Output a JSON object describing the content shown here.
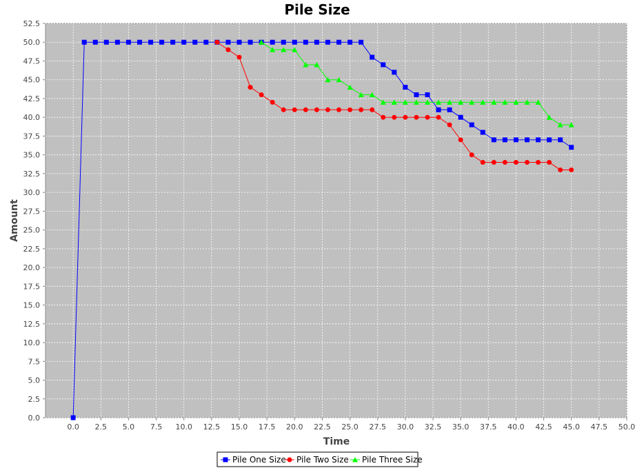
{
  "chart_data": {
    "type": "line",
    "title": "Pile Size",
    "xlabel": "Time",
    "ylabel": "Amount",
    "xlim": [
      -2.5,
      50
    ],
    "ylim": [
      0,
      52.5
    ],
    "x_ticks": [
      0,
      2.5,
      5,
      7.5,
      10,
      12.5,
      15,
      17.5,
      20,
      22.5,
      25,
      27.5,
      30,
      32.5,
      35,
      37.5,
      40,
      42.5,
      45,
      47.5,
      50
    ],
    "x_tick_labels": [
      "0.0",
      "2.5",
      "5.0",
      "7.5",
      "10.0",
      "12.5",
      "15.0",
      "17.5",
      "20.0",
      "22.5",
      "25.0",
      "27.5",
      "30.0",
      "32.5",
      "35.0",
      "37.5",
      "40.0",
      "42.5",
      "45.0",
      "47.5",
      "50.0"
    ],
    "y_ticks": [
      0,
      2.5,
      5,
      7.5,
      10,
      12.5,
      15,
      17.5,
      20,
      22.5,
      25,
      27.5,
      30,
      32.5,
      35,
      37.5,
      40,
      42.5,
      45,
      47.5,
      50,
      52.5
    ],
    "y_tick_labels": [
      "0.0",
      "2.5",
      "5.0",
      "7.5",
      "10.0",
      "12.5",
      "15.0",
      "17.5",
      "20.0",
      "22.5",
      "25.0",
      "27.5",
      "30.0",
      "32.5",
      "35.0",
      "37.5",
      "40.0",
      "42.5",
      "45.0",
      "47.5",
      "50.0",
      "52.5"
    ],
    "grid": true,
    "plot_background": "#c0c0c0",
    "legend_position": "bottom",
    "series": [
      {
        "name": "Pile One Size",
        "color": "#0000ff",
        "marker": "square",
        "x": [
          0,
          1,
          2,
          3,
          4,
          5,
          6,
          7,
          8,
          9,
          10,
          11,
          12,
          13,
          14,
          15,
          16,
          17,
          18,
          19,
          20,
          21,
          22,
          23,
          24,
          25,
          26,
          27,
          28,
          29,
          30,
          31,
          32,
          33,
          34,
          35,
          36,
          37,
          38,
          39,
          40,
          41,
          42,
          43,
          44,
          45
        ],
        "y": [
          0,
          50,
          50,
          50,
          50,
          50,
          50,
          50,
          50,
          50,
          50,
          50,
          50,
          50,
          50,
          50,
          50,
          50,
          50,
          50,
          50,
          50,
          50,
          50,
          50,
          50,
          50,
          48,
          47,
          46,
          44,
          43,
          43,
          41,
          41,
          40,
          39,
          38,
          37,
          37,
          37,
          37,
          37,
          37,
          37,
          36
        ]
      },
      {
        "name": "Pile Two Size",
        "color": "#ff0000",
        "marker": "circle",
        "x": [
          13,
          14,
          15,
          16,
          17,
          18,
          19,
          20,
          21,
          22,
          23,
          24,
          25,
          26,
          27,
          28,
          29,
          30,
          31,
          32,
          33,
          34,
          35,
          36,
          37,
          38,
          39,
          40,
          41,
          42,
          43,
          44,
          45
        ],
        "y": [
          50,
          49,
          48,
          44,
          43,
          42,
          41,
          41,
          41,
          41,
          41,
          41,
          41,
          41,
          41,
          40,
          40,
          40,
          40,
          40,
          40,
          39,
          37,
          35,
          34,
          34,
          34,
          34,
          34,
          34,
          34,
          33,
          33
        ]
      },
      {
        "name": "Pile Three Size",
        "color": "#00ff00",
        "marker": "triangle",
        "x": [
          17,
          18,
          19,
          20,
          21,
          22,
          23,
          24,
          25,
          26,
          27,
          28,
          29,
          30,
          31,
          32,
          33,
          34,
          35,
          36,
          37,
          38,
          39,
          40,
          41,
          42,
          43,
          44,
          45
        ],
        "y": [
          50,
          49,
          49,
          49,
          47,
          47,
          45,
          45,
          44,
          43,
          43,
          42,
          42,
          42,
          42,
          42,
          42,
          42,
          42,
          42,
          42,
          42,
          42,
          42,
          42,
          42,
          40,
          39,
          39
        ]
      }
    ]
  }
}
